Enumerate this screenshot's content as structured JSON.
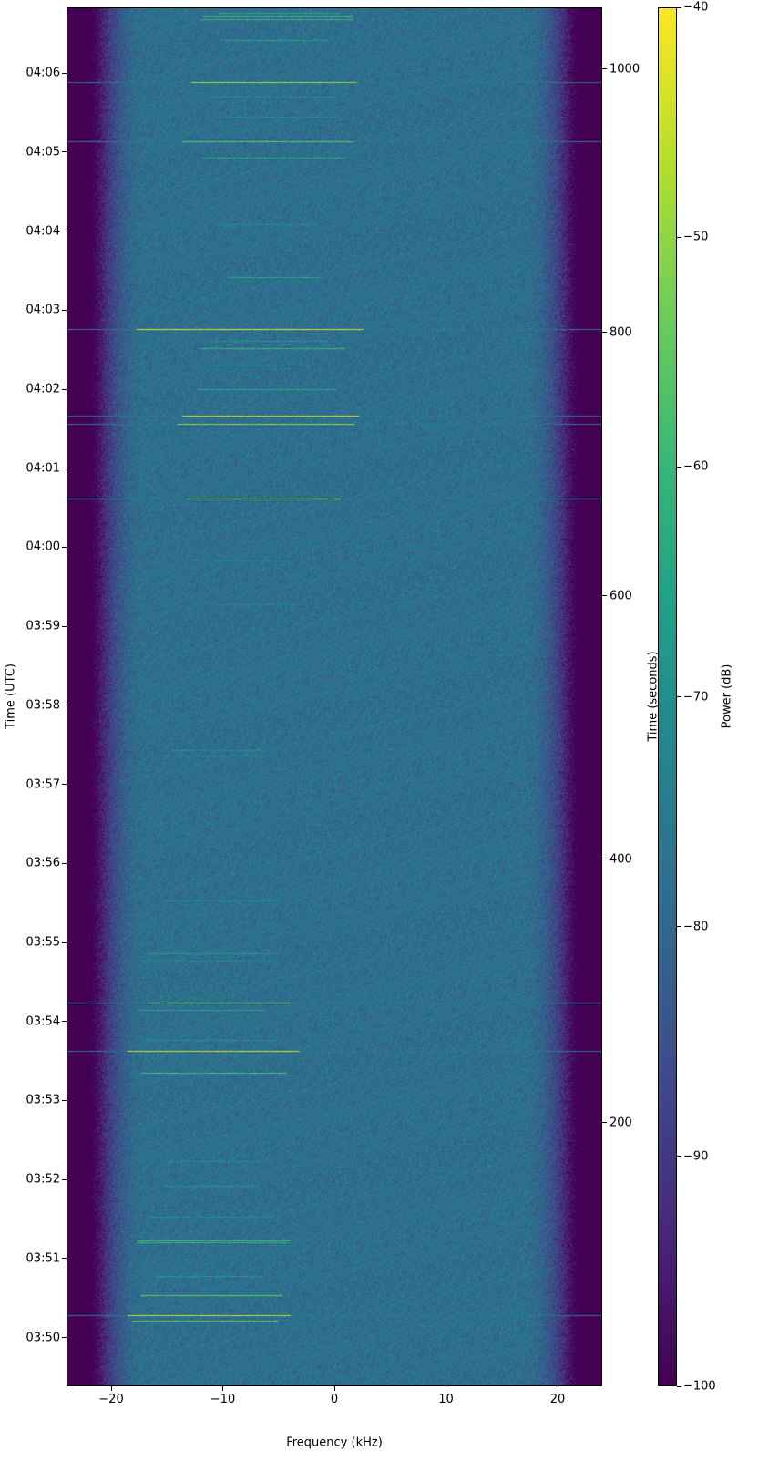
{
  "chart_data": {
    "type": "heatmap",
    "xlabel": "Frequency (kHz)",
    "ylabel": "Time (UTC)",
    "ylabel_right": "Time (seconds)",
    "colorbar_label": "Power (dB)",
    "colormap": "viridis",
    "xlim": [
      -24,
      24
    ],
    "xticks": [
      -20,
      -10,
      0,
      10,
      20
    ],
    "xtick_labels": [
      "−20",
      "−10",
      "0",
      "10",
      "20"
    ],
    "ylim_seconds": [
      0,
      1047
    ],
    "ylim_utc": [
      "03:49:23",
      "04:06:51"
    ],
    "yticks_utc": [
      "03:50",
      "03:51",
      "03:52",
      "03:53",
      "03:54",
      "03:55",
      "03:56",
      "03:57",
      "03:58",
      "03:59",
      "04:00",
      "04:01",
      "04:02",
      "04:03",
      "04:04",
      "04:05",
      "04:06"
    ],
    "yticks_seconds": [
      200,
      400,
      600,
      800,
      1000
    ],
    "clim": [
      -100,
      -40
    ],
    "cticks": [
      -40,
      -50,
      -60,
      -70,
      -80,
      -90,
      -100
    ],
    "ctick_labels": [
      "−40",
      "−50",
      "−60",
      "−70",
      "−80",
      "−90",
      "−100"
    ],
    "noise_floor_db": -78,
    "passband_khz": [
      -20,
      20
    ],
    "signals": [
      {
        "t": 1043,
        "f": [
          -10.4,
          0.6
        ],
        "db": -64
      },
      {
        "t": 1040,
        "f": [
          -11.9,
          1.6
        ],
        "db": -60
      },
      {
        "t": 1038,
        "f": [
          -12,
          1.8
        ],
        "db": -60
      },
      {
        "t": 1022,
        "f": [
          -10,
          -0.6
        ],
        "db": -66
      },
      {
        "t": 990,
        "f": [
          -12.9,
          2
        ],
        "db": -48,
        "wide": true
      },
      {
        "t": 979,
        "f": [
          -11.2,
          0.2
        ],
        "db": -70
      },
      {
        "t": 964,
        "f": [
          -10.4,
          0.6
        ],
        "db": -70
      },
      {
        "t": 945,
        "f": [
          -13.7,
          1.8
        ],
        "db": -55,
        "wide": true
      },
      {
        "t": 933,
        "f": [
          -11.9,
          0.8
        ],
        "db": -62
      },
      {
        "t": 882,
        "f": [
          -10.4,
          -1.5
        ],
        "db": -70
      },
      {
        "t": 842,
        "f": [
          -9.6,
          -1.1
        ],
        "db": -65
      },
      {
        "t": 803,
        "f": [
          -17.8,
          2.6
        ],
        "db": -42,
        "wide": true
      },
      {
        "t": 794,
        "f": [
          -11.2,
          -0.6
        ],
        "db": -68
      },
      {
        "t": 788,
        "f": [
          -12,
          1
        ],
        "db": -60
      },
      {
        "t": 776,
        "f": [
          -11.2,
          -2.3
        ],
        "db": -70
      },
      {
        "t": 757,
        "f": [
          -12.4,
          0.2
        ],
        "db": -65
      },
      {
        "t": 737,
        "f": [
          -13.7,
          2.2
        ],
        "db": -43,
        "wide": true
      },
      {
        "t": 731,
        "f": [
          -14.1,
          1.8
        ],
        "db": -50,
        "wide": true
      },
      {
        "t": 674,
        "f": [
          -13.3,
          0.6
        ],
        "db": -52,
        "wide": true
      },
      {
        "t": 627,
        "f": [
          -10.8,
          -3.9
        ],
        "db": -70
      },
      {
        "t": 594,
        "f": [
          -10.4,
          -3.1
        ],
        "db": -72
      },
      {
        "t": 483,
        "f": [
          -14.5,
          -6.4
        ],
        "db": -70
      },
      {
        "t": 479,
        "f": [
          -15.3,
          -5.5
        ],
        "db": -72
      },
      {
        "t": 369,
        "f": [
          -15.3,
          -4.7
        ],
        "db": -70
      },
      {
        "t": 329,
        "f": [
          -16.9,
          -5.1
        ],
        "db": -68
      },
      {
        "t": 323,
        "f": [
          -17.4,
          -5.5
        ],
        "db": -70
      },
      {
        "t": 291,
        "f": [
          -16.9,
          -3.9
        ],
        "db": -55,
        "wide": true
      },
      {
        "t": 286,
        "f": [
          -17.8,
          -6.4
        ],
        "db": -65
      },
      {
        "t": 263,
        "f": [
          -17.4,
          -5.1
        ],
        "db": -70
      },
      {
        "t": 255,
        "f": [
          -18.6,
          -3.1
        ],
        "db": -44,
        "wide": true
      },
      {
        "t": 238,
        "f": [
          -17.4,
          -4.3
        ],
        "db": -58
      },
      {
        "t": 171,
        "f": [
          -14.9,
          -6.4
        ],
        "db": -70
      },
      {
        "t": 152,
        "f": [
          -15.3,
          -6.8
        ],
        "db": -68
      },
      {
        "t": 129,
        "f": [
          -16.9,
          -5.5
        ],
        "db": -70
      },
      {
        "t": 111,
        "f": [
          -17.8,
          -3.9
        ],
        "db": -58
      },
      {
        "t": 109,
        "f": [
          -17.8,
          -4.3
        ],
        "db": -60
      },
      {
        "t": 84,
        "f": [
          -16.1,
          -6.4
        ],
        "db": -68
      },
      {
        "t": 69,
        "f": [
          -17.4,
          -4.7
        ],
        "db": -55
      },
      {
        "t": 54,
        "f": [
          -18.6,
          -3.9
        ],
        "db": -45,
        "wide": true
      },
      {
        "t": 50,
        "f": [
          -18.2,
          -5.1
        ],
        "db": -55
      }
    ]
  }
}
